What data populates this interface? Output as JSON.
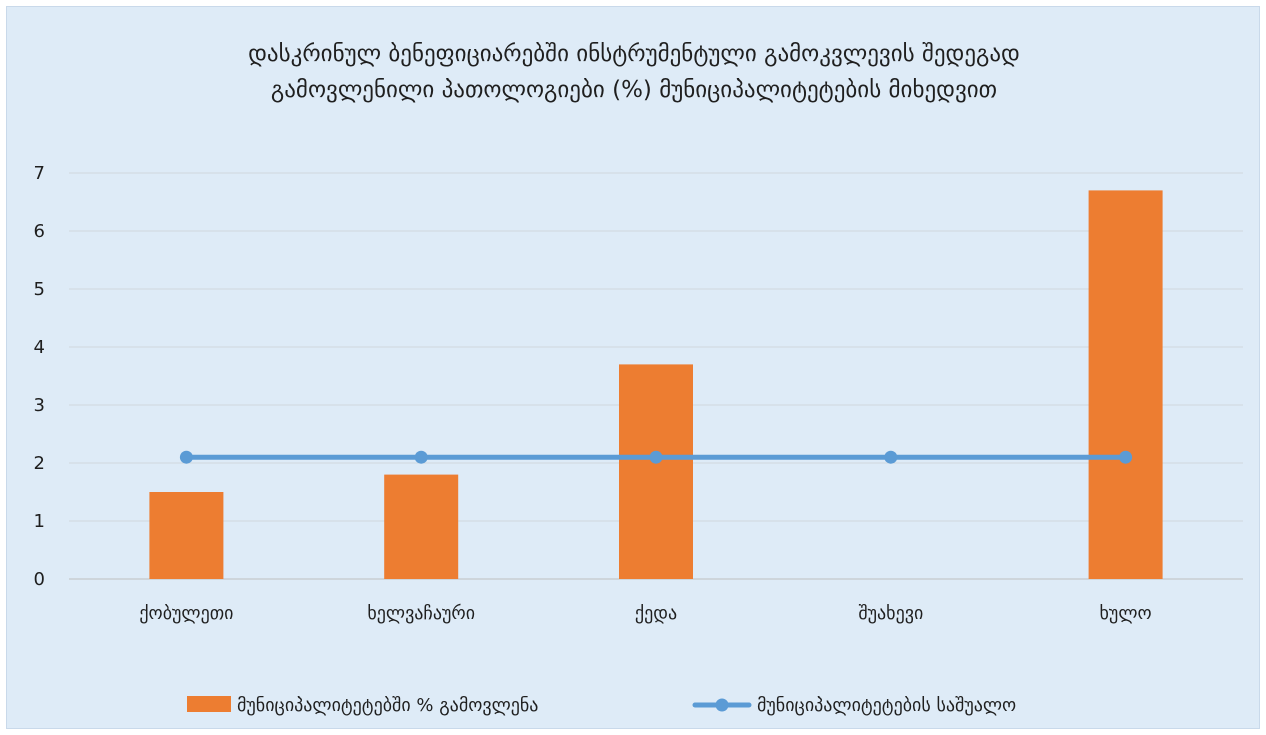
{
  "chart_data": {
    "type": "bar",
    "title_lines": [
      "დასკრინულ ბენეფიციარებში ინსტრუმენტული გამოკვლევის შედეგად",
      "გამოვლენილი პათოლოგიები (%) მუნიციპალიტეტების მიხედვით"
    ],
    "categories": [
      "ქობულეთი",
      "ხელვაჩაური",
      "ქედა",
      "შუახევი",
      "ხულო"
    ],
    "ylim": [
      0,
      7
    ],
    "y_ticks": [
      "0",
      "1",
      "2",
      "3",
      "4",
      "5",
      "6",
      "7"
    ],
    "grid": true,
    "legend_position": "bottom",
    "series": [
      {
        "name": "მუნიციპალიტეტებში % გამოვლენა",
        "kind": "bar",
        "color": "#ed7d31",
        "values": [
          1.5,
          1.8,
          3.7,
          0,
          6.7
        ]
      },
      {
        "name": "მუნიციპალიტეტების საშუალო",
        "kind": "line",
        "color": "#5b9bd5",
        "values": [
          2.1,
          2.1,
          2.1,
          2.1,
          2.1
        ]
      }
    ]
  }
}
